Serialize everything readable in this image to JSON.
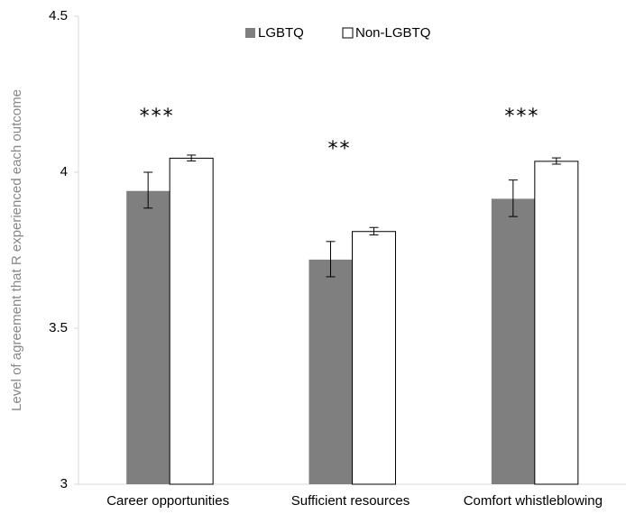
{
  "chart_data": {
    "type": "bar",
    "categories": [
      "Career opportunities",
      "Sufficient resources",
      "Comfort whistleblowing"
    ],
    "series": [
      {
        "name": "LGBTQ",
        "color": "#7f7f7f",
        "values": [
          3.94,
          3.72,
          3.915
        ],
        "error_low": [
          3.885,
          3.665,
          3.858
        ],
        "error_high": [
          4.0,
          3.778,
          3.975
        ]
      },
      {
        "name": "Non-LGBTQ",
        "color": "#ffffff",
        "values": [
          4.045,
          3.81,
          4.035
        ],
        "error_low": [
          4.036,
          3.799,
          4.026
        ],
        "error_high": [
          4.055,
          3.823,
          4.046
        ]
      }
    ],
    "significance": [
      "***",
      "**",
      "***"
    ],
    "ylabel": "Level of agreement that R experienced each outcome",
    "ylim": [
      3,
      4.5
    ],
    "yticks": [
      "3",
      "3.5",
      "4",
      "4.5"
    ],
    "ytick_values": [
      3,
      3.5,
      4,
      4.5
    ],
    "grid": false,
    "legend_position": "top-center"
  }
}
